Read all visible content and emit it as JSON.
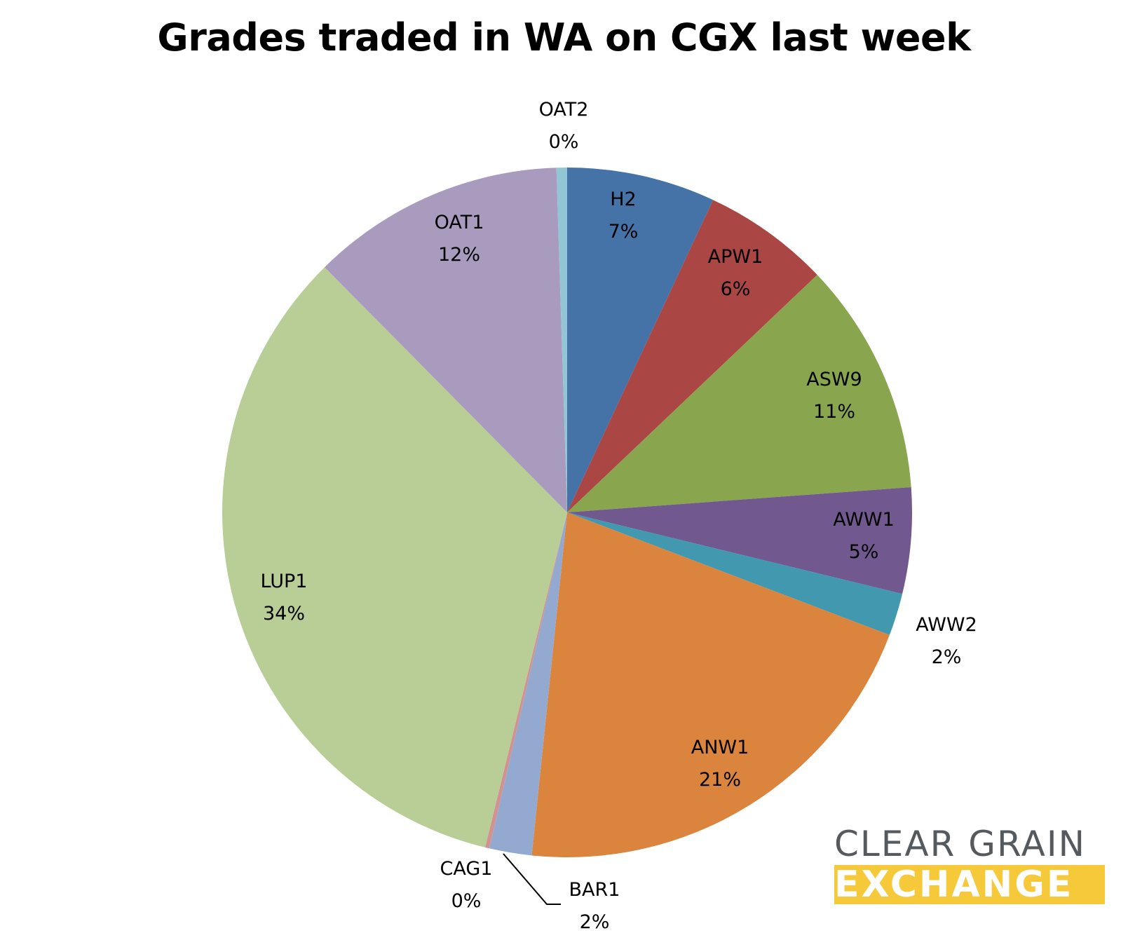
{
  "chart_data": {
    "type": "pie",
    "title": "Grades traded in WA on CGX last week",
    "slices": [
      {
        "name": "H2",
        "value": 7,
        "label": "7%",
        "color": "#4572a7"
      },
      {
        "name": "APW1",
        "value": 6,
        "label": "6%",
        "color": "#aa4643"
      },
      {
        "name": "ASW9",
        "value": 11,
        "label": "11%",
        "color": "#89a54e"
      },
      {
        "name": "AWW1",
        "value": 5,
        "label": "5%",
        "color": "#71588f"
      },
      {
        "name": "AWW2",
        "value": 2,
        "label": "2%",
        "color": "#4198af"
      },
      {
        "name": "ANW1",
        "value": 21,
        "label": "21%",
        "color": "#db843d"
      },
      {
        "name": "BAR1",
        "value": 2,
        "label": "2%",
        "color": "#93a9cf"
      },
      {
        "name": "CAG1",
        "value": 0.2,
        "label": "0%",
        "color": "#d19392"
      },
      {
        "name": "LUP1",
        "value": 34,
        "label": "34%",
        "color": "#b9cd96"
      },
      {
        "name": "OAT1",
        "value": 12,
        "label": "12%",
        "color": "#a99bbd"
      },
      {
        "name": "OAT2",
        "value": 0.5,
        "label": "0%",
        "color": "#92c5d5"
      }
    ]
  },
  "logo": {
    "line1": "CLEAR GRAIN",
    "line2": "EXCHANGE"
  }
}
